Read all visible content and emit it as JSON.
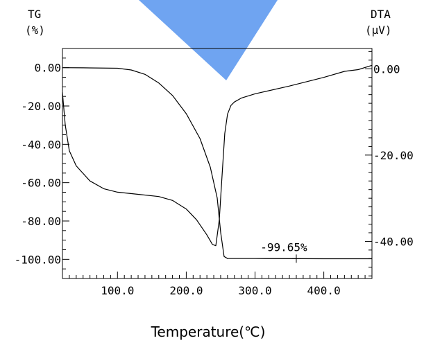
{
  "chart_data": {
    "type": "line",
    "xlabel": "Temperature(℃)",
    "x_ticks": [
      "100.0",
      "200.0",
      "300.0",
      "400.0"
    ],
    "x_tick_values": [
      100,
      200,
      300,
      400
    ],
    "xlim": [
      20,
      470
    ],
    "left_axis": {
      "title_line1": "TG",
      "title_line2": "(%)",
      "ticks": [
        "0.00",
        "-20.00",
        "-40.00",
        "-60.00",
        "-80.00",
        "-100.00"
      ],
      "tick_values": [
        0,
        -20,
        -40,
        -60,
        -80,
        -100
      ],
      "ylim": [
        -110,
        10
      ]
    },
    "right_axis": {
      "title_line1": "DTA",
      "title_line2": "(μV)",
      "ticks": [
        "0.00",
        "-20.00",
        "-40.00"
      ],
      "tick_values": [
        0,
        -20,
        -40
      ],
      "ylim": [
        -48.6,
        4.7
      ]
    },
    "annotation": {
      "text": "-99.65%",
      "x": 360,
      "y": -99.65
    },
    "series": [
      {
        "axis": "left",
        "x": [
          20,
          50,
          100,
          120,
          140,
          160,
          180,
          200,
          220,
          235,
          245,
          250,
          255,
          260,
          300,
          360,
          400,
          470
        ],
        "values": [
          0.0,
          -0.1,
          -0.3,
          -1.2,
          -3.5,
          -8.0,
          -14.5,
          -24.0,
          -37.0,
          -52.0,
          -68.0,
          -86.0,
          -98.5,
          -99.6,
          -99.6,
          -99.65,
          -99.7,
          -99.7
        ]
      },
      {
        "axis": "right",
        "x": [
          20,
          24,
          30,
          40,
          60,
          80,
          100,
          130,
          160,
          180,
          200,
          215,
          230,
          238,
          243,
          248,
          252,
          256,
          260,
          265,
          270,
          280,
          300,
          350,
          400,
          430,
          450,
          470
        ],
        "values": [
          -5.5,
          -13.0,
          -19.0,
          -22.5,
          -26.0,
          -27.8,
          -28.6,
          -29.1,
          -29.6,
          -30.5,
          -32.5,
          -35.0,
          -38.5,
          -40.7,
          -41.0,
          -35.0,
          -25.0,
          -15.0,
          -10.5,
          -8.5,
          -7.7,
          -6.8,
          -5.8,
          -4.0,
          -2.0,
          -0.6,
          -0.2,
          0.8
        ]
      }
    ]
  }
}
